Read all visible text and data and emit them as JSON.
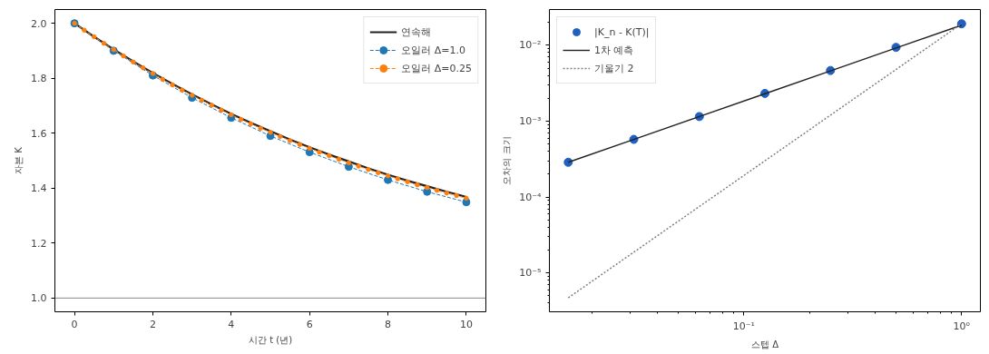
{
  "chart_data": [
    {
      "type": "line",
      "xlabel": "시간 t (년)",
      "ylabel": "자본 K",
      "xlim": [
        -0.5,
        10.5
      ],
      "ylim": [
        0.95,
        2.05
      ],
      "xticks": [
        0,
        2,
        4,
        6,
        8,
        10
      ],
      "yticks": [
        {
          "value": 1.0,
          "label": "1.0"
        },
        {
          "value": 1.2,
          "label": "1.2"
        },
        {
          "value": 1.4,
          "label": "1.4"
        },
        {
          "value": 1.6,
          "label": "1.6"
        },
        {
          "value": 1.8,
          "label": "1.8"
        },
        {
          "value": 2.0,
          "label": "2.0"
        }
      ],
      "legend": "top right",
      "grid": false,
      "ref_lines": [
        {
          "axis": "y",
          "value": 1.0,
          "color": "#888888"
        }
      ],
      "series": [
        {
          "name": "연속해",
          "color": "#222222",
          "marker": "none",
          "line_style": "solid",
          "x": [
            0,
            0.5,
            1,
            1.5,
            2,
            2.5,
            3,
            3.5,
            4,
            4.5,
            5,
            5.5,
            6,
            6.5,
            7,
            7.5,
            8,
            8.5,
            9,
            9.5,
            10
          ],
          "values": [
            2.0,
            1.951,
            1.905,
            1.861,
            1.819,
            1.779,
            1.741,
            1.705,
            1.67,
            1.638,
            1.607,
            1.577,
            1.549,
            1.522,
            1.497,
            1.472,
            1.449,
            1.427,
            1.407,
            1.387,
            1.368
          ]
        },
        {
          "name": "오일러 Δ=1.0",
          "color": "#1f77b4",
          "marker": "circle",
          "line_style": "dashed",
          "x": [
            0,
            1,
            2,
            3,
            4,
            5,
            6,
            7,
            8,
            9,
            10
          ],
          "values": [
            2.0,
            1.9,
            1.81,
            1.729,
            1.656,
            1.59,
            1.531,
            1.478,
            1.43,
            1.387,
            1.349
          ]
        },
        {
          "name": "오일러 Δ=0.25",
          "color": "#ff7f0e",
          "marker": "circle",
          "line_style": "dashed",
          "x": [
            0,
            0.25,
            0.5,
            0.75,
            1,
            1.25,
            1.5,
            1.75,
            2,
            2.25,
            2.5,
            2.75,
            3,
            3.25,
            3.5,
            3.75,
            4,
            4.25,
            4.5,
            4.75,
            5,
            5.25,
            5.5,
            5.75,
            6,
            6.25,
            6.5,
            6.75,
            7,
            7.25,
            7.5,
            7.75,
            8,
            8.25,
            8.5,
            8.75,
            9,
            9.25,
            9.5,
            9.75,
            10
          ],
          "values": [
            2.0,
            1.975,
            1.951,
            1.927,
            1.904,
            1.881,
            1.859,
            1.838,
            1.817,
            1.796,
            1.776,
            1.757,
            1.738,
            1.72,
            1.702,
            1.684,
            1.667,
            1.65,
            1.634,
            1.618,
            1.603,
            1.588,
            1.573,
            1.559,
            1.545,
            1.531,
            1.518,
            1.505,
            1.492,
            1.48,
            1.468,
            1.456,
            1.445,
            1.434,
            1.423,
            1.412,
            1.402,
            1.392,
            1.382,
            1.373,
            1.363
          ]
        }
      ]
    },
    {
      "type": "scatter",
      "xlabel": "스텝 Δ",
      "ylabel": "오차의 크기",
      "log": "xy",
      "xlim": [
        0.0128,
        1.22
      ],
      "ylim": [
        3.07e-06,
        0.0296
      ],
      "xticks": [
        {
          "value": 0.1,
          "label": "10⁻¹"
        },
        {
          "value": 1,
          "label": "10⁰"
        }
      ],
      "yticks": [
        {
          "value": 1e-05,
          "label": "10⁻⁵"
        },
        {
          "value": 0.0001,
          "label": "10⁻⁴"
        },
        {
          "value": 0.001,
          "label": "10⁻³"
        },
        {
          "value": 0.01,
          "label": "10⁻²"
        }
      ],
      "legend": "top left",
      "grid": false,
      "series": [
        {
          "name": "|K_n - K(T)|",
          "type": "scatter",
          "color": "#2060c0",
          "marker": "circle",
          "x": [
            0.015625,
            0.03125,
            0.0625,
            0.125,
            0.25,
            0.5,
            1
          ],
          "values": [
            0.000287,
            0.000575,
            0.00115,
            0.00232,
            0.00465,
            0.00939,
            0.0192
          ]
        },
        {
          "name": "1차 예측",
          "type": "line",
          "color": "#222222",
          "line_style": "solid",
          "x": [
            0.015625,
            0.03125,
            0.0625,
            0.125,
            0.25,
            0.5,
            1
          ],
          "values": [
            0.000287,
            0.000575,
            0.00115,
            0.0023,
            0.0046,
            0.0092,
            0.0184
          ]
        },
        {
          "name": "기울기 2",
          "type": "line",
          "color": "#808080",
          "line_style": "dotted",
          "x": [
            0.015625,
            0.03125,
            0.0625,
            0.125,
            0.25,
            0.5,
            1
          ],
          "values": [
            4.69e-06,
            1.875e-05,
            7.5e-05,
            0.0003,
            0.0012,
            0.0048,
            0.0192
          ]
        }
      ]
    }
  ]
}
